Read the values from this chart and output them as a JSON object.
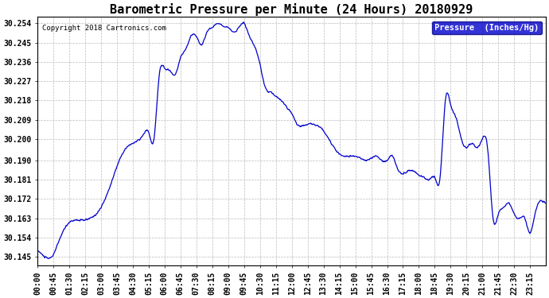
{
  "title": "Barometric Pressure per Minute (24 Hours) 20180929",
  "copyright": "Copyright 2018 Cartronics.com",
  "legend_label": "Pressure  (Inches/Hg)",
  "background_color": "#ffffff",
  "plot_bg_color": "#ffffff",
  "line_color": "#0000cc",
  "legend_bg_color": "#0000cc",
  "legend_text_color": "#ffffff",
  "grid_color": "#bbbbbb",
  "title_color": "#000000",
  "copyright_color": "#000000",
  "ylim": [
    30.141,
    30.257
  ],
  "yticks": [
    30.145,
    30.154,
    30.163,
    30.172,
    30.181,
    30.19,
    30.2,
    30.209,
    30.218,
    30.227,
    30.236,
    30.245,
    30.254
  ],
  "xtick_labels": [
    "00:00",
    "00:45",
    "01:30",
    "02:15",
    "03:00",
    "03:45",
    "04:30",
    "05:15",
    "06:00",
    "06:45",
    "07:30",
    "08:15",
    "09:00",
    "09:45",
    "10:30",
    "11:15",
    "12:00",
    "12:45",
    "13:30",
    "14:15",
    "15:00",
    "15:45",
    "16:30",
    "17:15",
    "18:00",
    "18:45",
    "19:30",
    "20:15",
    "21:00",
    "21:45",
    "22:30",
    "23:15"
  ],
  "title_fontsize": 11,
  "copyright_fontsize": 6.5,
  "tick_fontsize": 7,
  "legend_fontsize": 7.5,
  "line_width": 0.9,
  "ctrl_t": [
    0,
    20,
    45,
    60,
    90,
    120,
    150,
    180,
    210,
    240,
    270,
    300,
    315,
    330,
    345,
    360,
    375,
    390,
    405,
    420,
    435,
    450,
    465,
    480,
    495,
    510,
    525,
    540,
    555,
    570,
    585,
    600,
    615,
    630,
    645,
    660,
    675,
    690,
    705,
    720,
    735,
    750,
    765,
    780,
    795,
    810,
    825,
    840,
    855,
    870,
    885,
    900,
    915,
    930,
    945,
    960,
    975,
    990,
    1005,
    1020,
    1035,
    1050,
    1065,
    1080,
    1095,
    1110,
    1125,
    1140,
    1155,
    1170,
    1185,
    1200,
    1215,
    1230,
    1245,
    1260,
    1275,
    1290,
    1305,
    1320,
    1335,
    1350,
    1365,
    1380,
    1395,
    1410,
    1425,
    1439
  ],
  "ctrl_p": [
    30.148,
    30.145,
    30.146,
    30.152,
    30.161,
    30.162,
    30.163,
    30.168,
    30.18,
    30.193,
    30.198,
    30.202,
    30.203,
    30.2,
    30.23,
    30.233,
    30.232,
    30.23,
    30.238,
    30.242,
    30.248,
    30.248,
    30.244,
    30.25,
    30.252,
    30.254,
    30.253,
    30.252,
    30.25,
    30.252,
    30.254,
    30.248,
    30.243,
    30.235,
    30.224,
    30.222,
    30.22,
    30.218,
    30.215,
    30.212,
    30.207,
    30.206,
    30.207,
    30.207,
    30.206,
    30.204,
    30.2,
    30.196,
    30.193,
    30.192,
    30.192,
    30.192,
    30.191,
    30.19,
    30.191,
    30.192,
    30.19,
    30.19,
    30.192,
    30.186,
    30.184,
    30.185,
    30.185,
    30.183,
    30.182,
    30.181,
    30.182,
    30.182,
    30.218,
    30.216,
    30.21,
    30.2,
    30.196,
    30.198,
    30.196,
    30.2,
    30.195,
    30.163,
    30.165,
    30.168,
    30.17,
    30.165,
    30.163,
    30.163,
    30.156,
    30.166,
    30.171,
    30.17
  ]
}
